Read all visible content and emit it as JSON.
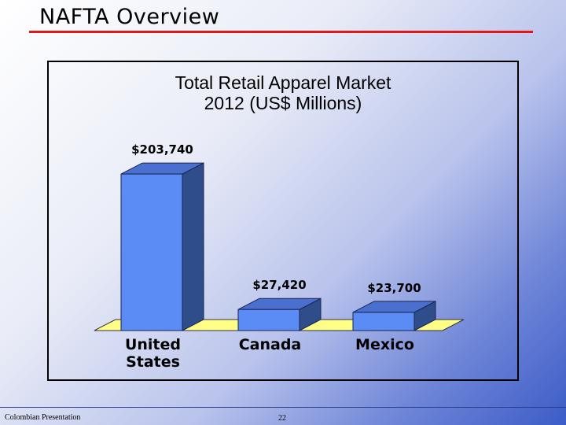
{
  "slide": {
    "title": "NAFTA Overview",
    "footer_left": "Colombian Presentation",
    "page_number": "22"
  },
  "colors": {
    "title_rule": "#e01818",
    "bar_front": "#5b8cf5",
    "bar_top": "#4a6fcf",
    "bar_side": "#2f4d8a",
    "floor": "#ffff88"
  },
  "chart_data": {
    "type": "bar",
    "title_lines": [
      "Total Retail Apparel Market",
      "2012 (US$ Millions)"
    ],
    "categories": [
      [
        "United",
        "States"
      ],
      [
        "Canada"
      ],
      [
        "Mexico"
      ]
    ],
    "values": [
      203740,
      27420,
      23700
    ],
    "value_labels": [
      "$203,740",
      "$27,420",
      "$23,700"
    ],
    "xlabel": "",
    "ylabel": "",
    "ylim": [
      0,
      210000
    ],
    "grid": false,
    "legend": "none",
    "style": "3d"
  }
}
